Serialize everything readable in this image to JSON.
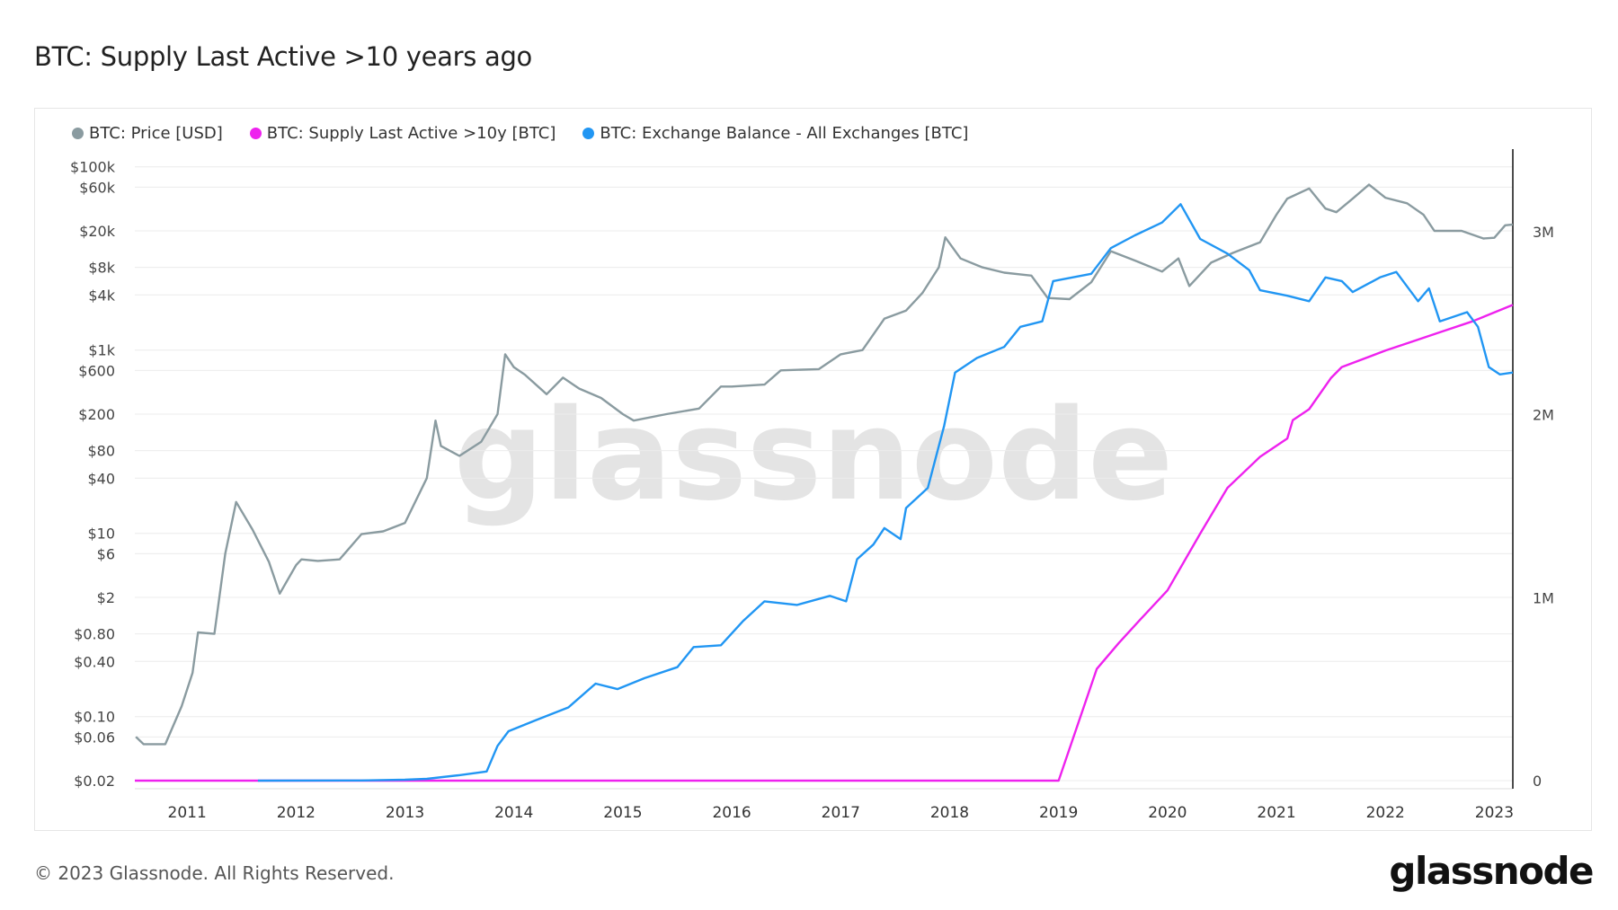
{
  "title": "BTC: Supply Last Active >10 years ago",
  "footer": "© 2023 Glassnode. All Rights Reserved.",
  "logo_text": "glassnode",
  "watermark": "glassnode",
  "chart_data": {
    "type": "line",
    "title": "BTC: Supply Last Active >10 years ago",
    "legend_position": "top-left",
    "grid": true,
    "x_range": [
      2010.52,
      2023.17
    ],
    "x_ticks": [
      "2011",
      "2012",
      "2013",
      "2014",
      "2015",
      "2016",
      "2017",
      "2018",
      "2019",
      "2020",
      "2021",
      "2022",
      "2023"
    ],
    "y_left": {
      "scale": "log",
      "range": [
        0.02,
        100000
      ],
      "ticks": [
        {
          "v": 100000,
          "l": "$100k"
        },
        {
          "v": 60000,
          "l": "$60k"
        },
        {
          "v": 20000,
          "l": "$20k"
        },
        {
          "v": 8000,
          "l": "$8k"
        },
        {
          "v": 4000,
          "l": "$4k"
        },
        {
          "v": 1000,
          "l": "$1k"
        },
        {
          "v": 600,
          "l": "$600"
        },
        {
          "v": 200,
          "l": "$200"
        },
        {
          "v": 80,
          "l": "$80"
        },
        {
          "v": 40,
          "l": "$40"
        },
        {
          "v": 10,
          "l": "$10"
        },
        {
          "v": 6,
          "l": "$6"
        },
        {
          "v": 2,
          "l": "$2"
        },
        {
          "v": 0.8,
          "l": "$0.80"
        },
        {
          "v": 0.4,
          "l": "$0.40"
        },
        {
          "v": 0.1,
          "l": "$0.10"
        },
        {
          "v": 0.06,
          "l": "$0.06"
        },
        {
          "v": 0.02,
          "l": "$0.02"
        }
      ]
    },
    "y_right": {
      "scale": "linear",
      "range": [
        0,
        3400000
      ],
      "ticks": [
        {
          "v": 0,
          "l": "0"
        },
        {
          "v": 1000000,
          "l": "1M"
        },
        {
          "v": 2000000,
          "l": "2M"
        },
        {
          "v": 3000000,
          "l": "3M"
        }
      ]
    },
    "series": [
      {
        "name": "BTC: Price [USD]",
        "axis": "left",
        "color": "#8a9ba0",
        "points": [
          [
            2010.53,
            0.06
          ],
          [
            2010.6,
            0.05
          ],
          [
            2010.8,
            0.05
          ],
          [
            2010.95,
            0.13
          ],
          [
            2011.05,
            0.3
          ],
          [
            2011.1,
            0.83
          ],
          [
            2011.25,
            0.8
          ],
          [
            2011.35,
            6
          ],
          [
            2011.45,
            22
          ],
          [
            2011.6,
            11
          ],
          [
            2011.75,
            4.9
          ],
          [
            2011.85,
            2.2
          ],
          [
            2012.0,
            4.5
          ],
          [
            2012.05,
            5.2
          ],
          [
            2012.2,
            5
          ],
          [
            2012.4,
            5.2
          ],
          [
            2012.6,
            9.8
          ],
          [
            2012.8,
            10.5
          ],
          [
            2013.0,
            13
          ],
          [
            2013.2,
            40
          ],
          [
            2013.28,
            170
          ],
          [
            2013.33,
            90
          ],
          [
            2013.5,
            70
          ],
          [
            2013.7,
            100
          ],
          [
            2013.85,
            200
          ],
          [
            2013.92,
            900
          ],
          [
            2014.0,
            650
          ],
          [
            2014.1,
            540
          ],
          [
            2014.3,
            330
          ],
          [
            2014.45,
            500
          ],
          [
            2014.6,
            380
          ],
          [
            2014.8,
            300
          ],
          [
            2015.0,
            200
          ],
          [
            2015.1,
            170
          ],
          [
            2015.4,
            200
          ],
          [
            2015.7,
            230
          ],
          [
            2015.9,
            400
          ],
          [
            2016.0,
            400
          ],
          [
            2016.3,
            420
          ],
          [
            2016.45,
            600
          ],
          [
            2016.8,
            620
          ],
          [
            2017.0,
            900
          ],
          [
            2017.2,
            1000
          ],
          [
            2017.4,
            2200
          ],
          [
            2017.6,
            2700
          ],
          [
            2017.75,
            4200
          ],
          [
            2017.9,
            8000
          ],
          [
            2017.96,
            17000
          ],
          [
            2018.1,
            10000
          ],
          [
            2018.3,
            8000
          ],
          [
            2018.5,
            7000
          ],
          [
            2018.75,
            6500
          ],
          [
            2018.9,
            3700
          ],
          [
            2019.1,
            3600
          ],
          [
            2019.3,
            5500
          ],
          [
            2019.48,
            12000
          ],
          [
            2019.7,
            9500
          ],
          [
            2019.95,
            7200
          ],
          [
            2020.1,
            10000
          ],
          [
            2020.2,
            5000
          ],
          [
            2020.4,
            9000
          ],
          [
            2020.6,
            11500
          ],
          [
            2020.85,
            15000
          ],
          [
            2021.0,
            30000
          ],
          [
            2021.1,
            45000
          ],
          [
            2021.3,
            58000
          ],
          [
            2021.45,
            35000
          ],
          [
            2021.55,
            32000
          ],
          [
            2021.7,
            45000
          ],
          [
            2021.85,
            64000
          ],
          [
            2022.0,
            46000
          ],
          [
            2022.2,
            40000
          ],
          [
            2022.35,
            30000
          ],
          [
            2022.45,
            20000
          ],
          [
            2022.7,
            20000
          ],
          [
            2022.9,
            16500
          ],
          [
            2023.0,
            16800
          ],
          [
            2023.1,
            23000
          ],
          [
            2023.17,
            23500
          ]
        ]
      },
      {
        "name": "BTC: Supply Last Active >10y [BTC]",
        "axis": "right",
        "color": "#ee22ee",
        "points": [
          [
            2010.52,
            0
          ],
          [
            2019.0,
            0
          ],
          [
            2019.35,
            610000
          ],
          [
            2019.55,
            750000
          ],
          [
            2019.75,
            880000
          ],
          [
            2020.0,
            1040000
          ],
          [
            2020.3,
            1350000
          ],
          [
            2020.55,
            1600000
          ],
          [
            2020.85,
            1770000
          ],
          [
            2021.1,
            1870000
          ],
          [
            2021.15,
            1970000
          ],
          [
            2021.3,
            2030000
          ],
          [
            2021.5,
            2200000
          ],
          [
            2021.6,
            2260000
          ],
          [
            2022.0,
            2350000
          ],
          [
            2022.5,
            2450000
          ],
          [
            2022.8,
            2510000
          ],
          [
            2023.17,
            2600000
          ]
        ]
      },
      {
        "name": "BTC: Exchange Balance - All Exchanges [BTC]",
        "axis": "right",
        "color": "#2196f3",
        "points": [
          [
            2011.65,
            0
          ],
          [
            2012.6,
            1000
          ],
          [
            2013.0,
            5000
          ],
          [
            2013.2,
            10000
          ],
          [
            2013.5,
            30000
          ],
          [
            2013.75,
            50000
          ],
          [
            2013.85,
            190000
          ],
          [
            2013.95,
            270000
          ],
          [
            2014.2,
            330000
          ],
          [
            2014.5,
            400000
          ],
          [
            2014.75,
            530000
          ],
          [
            2014.95,
            500000
          ],
          [
            2015.2,
            560000
          ],
          [
            2015.5,
            620000
          ],
          [
            2015.65,
            730000
          ],
          [
            2015.9,
            740000
          ],
          [
            2016.1,
            870000
          ],
          [
            2016.3,
            980000
          ],
          [
            2016.6,
            960000
          ],
          [
            2016.9,
            1010000
          ],
          [
            2017.05,
            980000
          ],
          [
            2017.15,
            1210000
          ],
          [
            2017.3,
            1290000
          ],
          [
            2017.4,
            1380000
          ],
          [
            2017.55,
            1320000
          ],
          [
            2017.6,
            1490000
          ],
          [
            2017.8,
            1600000
          ],
          [
            2017.95,
            1940000
          ],
          [
            2018.05,
            2230000
          ],
          [
            2018.25,
            2310000
          ],
          [
            2018.5,
            2370000
          ],
          [
            2018.65,
            2480000
          ],
          [
            2018.85,
            2510000
          ],
          [
            2018.95,
            2730000
          ],
          [
            2019.3,
            2770000
          ],
          [
            2019.48,
            2910000
          ],
          [
            2019.7,
            2980000
          ],
          [
            2019.95,
            3050000
          ],
          [
            2020.12,
            3150000
          ],
          [
            2020.3,
            2960000
          ],
          [
            2020.55,
            2880000
          ],
          [
            2020.75,
            2790000
          ],
          [
            2020.85,
            2680000
          ],
          [
            2021.1,
            2650000
          ],
          [
            2021.3,
            2620000
          ],
          [
            2021.45,
            2750000
          ],
          [
            2021.6,
            2730000
          ],
          [
            2021.7,
            2670000
          ],
          [
            2021.95,
            2750000
          ],
          [
            2022.1,
            2780000
          ],
          [
            2022.3,
            2620000
          ],
          [
            2022.4,
            2690000
          ],
          [
            2022.5,
            2510000
          ],
          [
            2022.75,
            2560000
          ],
          [
            2022.85,
            2480000
          ],
          [
            2022.95,
            2260000
          ],
          [
            2023.05,
            2220000
          ],
          [
            2023.17,
            2230000
          ]
        ]
      }
    ]
  }
}
